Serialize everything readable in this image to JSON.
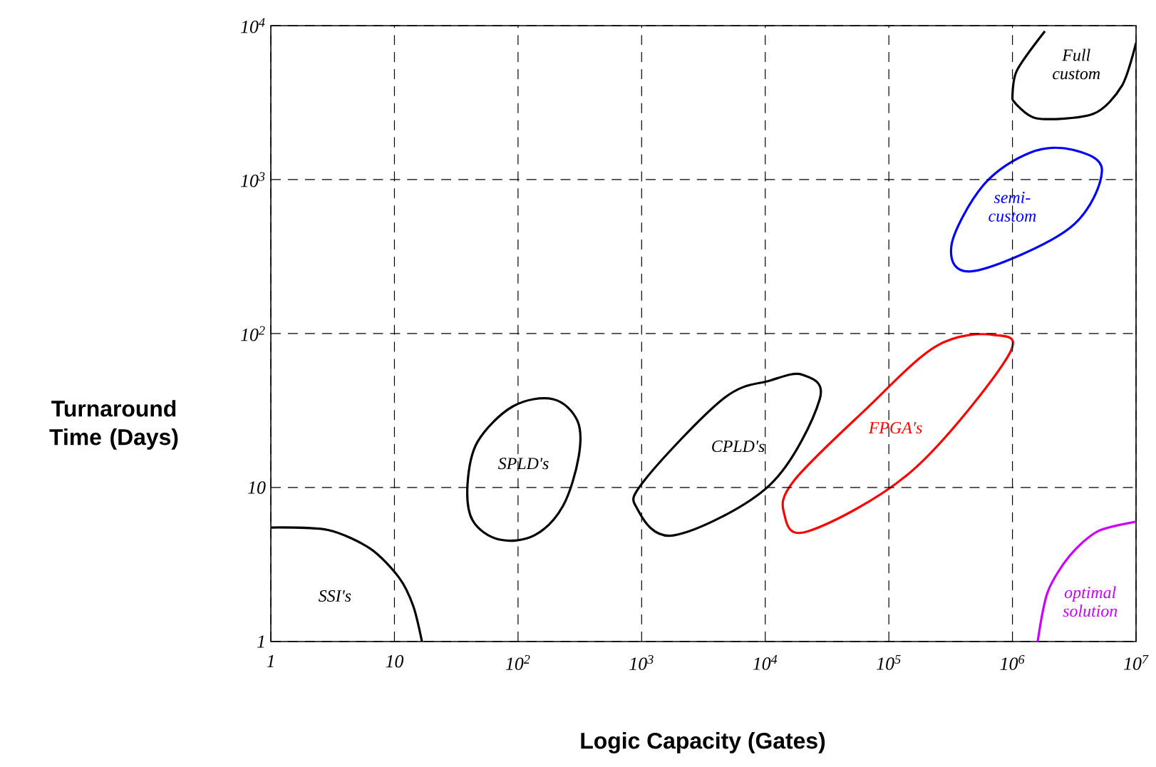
{
  "chart_data": {
    "type": "line",
    "xlabel": "Logic Capacity (Gates)",
    "ylabel": "Turnaround Time (Days)",
    "log": "xy",
    "grid": true,
    "marker": "none",
    "line_style": "solid",
    "xlim": [
      1,
      10000000
    ],
    "ylim": [
      1,
      10000
    ],
    "xticks": [
      1,
      10,
      {
        "value": 100,
        "label": "10$^{2}$"
      },
      {
        "value": 1000,
        "label": "10$^{3}$"
      },
      {
        "value": 10000,
        "label": "10$^{4}$"
      },
      {
        "value": 100000,
        "label": "10$^{5}$"
      },
      {
        "value": 1000000,
        "label": "10$^{6}$"
      },
      {
        "value": 10000000,
        "label": "10$^{7}$"
      }
    ],
    "yticks": [
      1,
      10,
      {
        "value": 100,
        "label": "10$^{2}$"
      },
      {
        "value": 1000,
        "label": "10$^{3}$"
      },
      {
        "value": 10000,
        "label": "10$^{4}$"
      }
    ],
    "series": [
      {
        "color": "#000000",
        "x": [
          1,
          2.9,
          6.4,
          10.9,
          14.2,
          16.7
        ],
        "values": [
          5.5,
          5.3,
          4.0,
          2.6,
          1.7,
          1
        ]
      },
      {
        "color": "#000000",
        "x": [
          1000000,
          1080000,
          1830000
        ],
        "values": [
          3300,
          5060,
          9200
        ]
      },
      {
        "color": "#000000",
        "x": [
          1000000,
          1560000,
          4500000,
          7700000,
          10000000
        ],
        "values": [
          3300,
          2500,
          2670,
          4080,
          7740
        ]
      },
      {
        "color": "#cc00ff",
        "x": [
          1600000,
          1930000,
          2900000,
          4900000,
          10000000
        ],
        "values": [
          1,
          2.1,
          3.6,
          5.2,
          6.0
        ]
      }
    ],
    "annotations": [
      "SSI's",
      "SPLD's",
      "CPLD's",
      "FPGA's",
      "semi-custom",
      "Full custom",
      "optimal solution"
    ]
  }
}
